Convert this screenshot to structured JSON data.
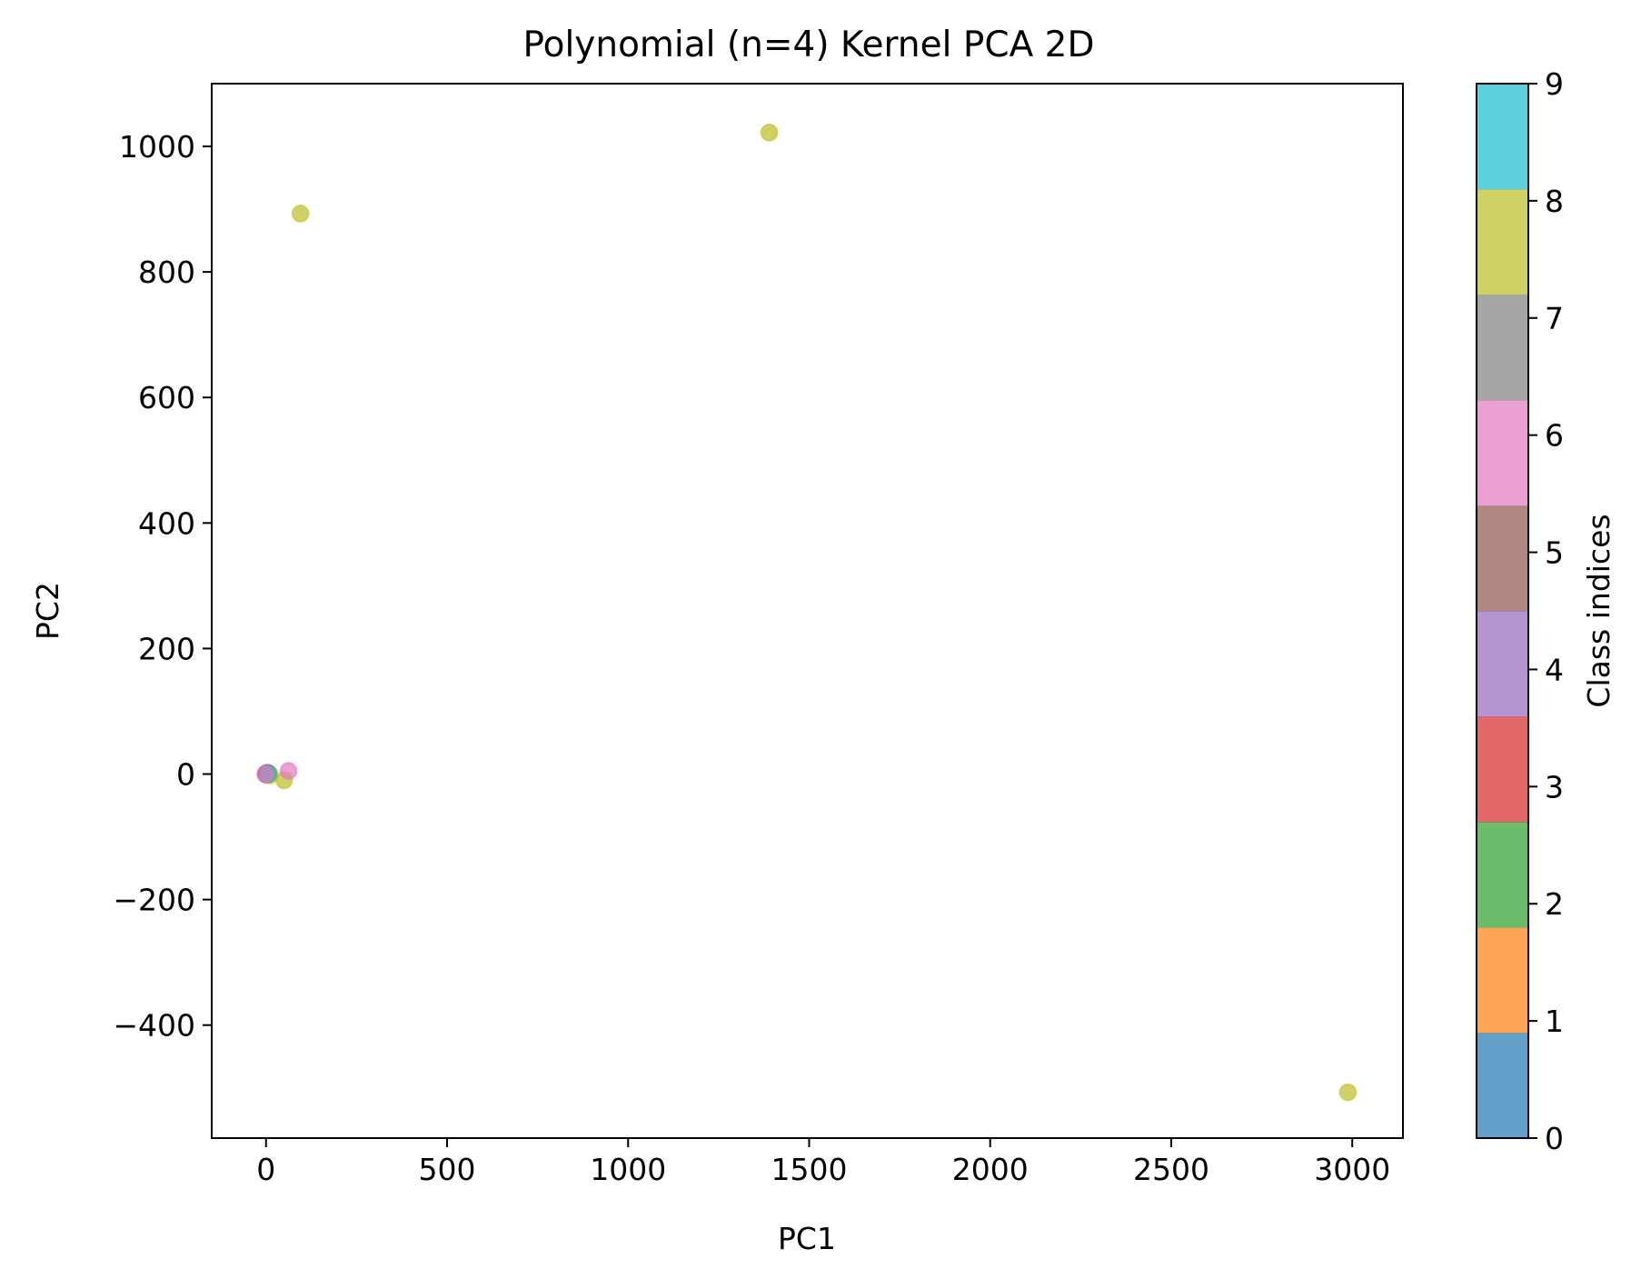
{
  "chart_data": {
    "type": "scatter",
    "title": "Polynomial (n=4) Kernel PCA 2D",
    "xlabel": "PC1",
    "ylabel": "PC2",
    "xlim": [
      -150,
      3140
    ],
    "ylim": [
      -580,
      1100
    ],
    "xticks": [
      0,
      500,
      1000,
      1500,
      2000,
      2500,
      3000
    ],
    "xtick_labels": [
      "0",
      "500",
      "1000",
      "1500",
      "2000",
      "2500",
      "3000"
    ],
    "yticks": [
      -400,
      -200,
      0,
      200,
      400,
      600,
      800,
      1000
    ],
    "ytick_labels": [
      "−400",
      "−200",
      "0",
      "200",
      "400",
      "600",
      "800",
      "1000"
    ],
    "grid": false,
    "colorbar": {
      "label": "Class indices",
      "ticks": [
        "0",
        "1",
        "2",
        "3",
        "4",
        "5",
        "6",
        "7",
        "8",
        "9"
      ],
      "colors": [
        "#1f77b4",
        "#ff7f0e",
        "#2ca02c",
        "#d62728",
        "#9467bd",
        "#8c564b",
        "#e377c2",
        "#7f7f7f",
        "#bcbd22",
        "#17becf"
      ],
      "alpha": 0.7
    },
    "points": [
      {
        "x": 1390,
        "y": 1022,
        "cls": 8
      },
      {
        "x": 95,
        "y": 893,
        "cls": 8
      },
      {
        "x": 2988,
        "y": -507,
        "cls": 8
      },
      {
        "x": 50,
        "y": -10,
        "cls": 8
      },
      {
        "x": 62,
        "y": 5,
        "cls": 6
      },
      {
        "x": 0,
        "y": 0,
        "cls": 0
      },
      {
        "x": 3,
        "y": 1,
        "cls": 1
      },
      {
        "x": 6,
        "y": 0,
        "cls": 2
      },
      {
        "x": 2,
        "y": -1,
        "cls": 3
      },
      {
        "x": 4,
        "y": 2,
        "cls": 4
      },
      {
        "x": 1,
        "y": 1,
        "cls": 5
      },
      {
        "x": 8,
        "y": 1,
        "cls": 7
      },
      {
        "x": 10,
        "y": -2,
        "cls": 8
      },
      {
        "x": 5,
        "y": 0,
        "cls": 9
      },
      {
        "x": -2,
        "y": 0,
        "cls": 6
      }
    ]
  }
}
